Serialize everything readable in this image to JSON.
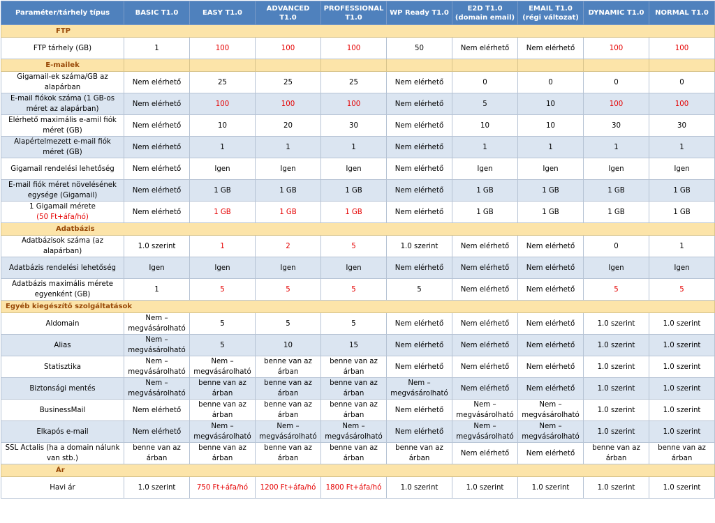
{
  "columns": [
    "Paraméter/tárhely típus",
    "BASIC T1.0",
    "EASY T1.0",
    "ADVANCED T1.0",
    "PROFESSIONAL T1.0",
    "WP Ready T1.0",
    "E2D T1.0 (domain email)",
    "EMAIL T1.0 (régi változat)",
    "DYNAMIC T1.0",
    "NORMAL T1.0"
  ],
  "sections": [
    {
      "title": "FTP",
      "rows": [
        {
          "label": "FTP tárhely (GB)",
          "cells": [
            "1",
            "100",
            "100",
            "100",
            "50",
            "Nem elérhető",
            "Nem elérhető",
            "100",
            "100"
          ],
          "red": [
            1,
            2,
            3,
            7,
            8
          ]
        }
      ]
    },
    {
      "title": "E-mailek",
      "rows": [
        {
          "label": "Gigamail-ek száma/GB az alapárban",
          "cells": [
            "Nem elérhető",
            "25",
            "25",
            "25",
            "Nem elérhető",
            "0",
            "0",
            "0",
            "0"
          ],
          "red": []
        },
        {
          "label": "E-mail fiókok száma (1 GB-os méret az alapárban)",
          "cells": [
            "Nem elérhető",
            "100",
            "100",
            "100",
            "Nem elérhető",
            "5",
            "10",
            "100",
            "100"
          ],
          "red": [
            1,
            2,
            3,
            7,
            8
          ]
        },
        {
          "label": "Elérhető maximális e-amil fiók méret (GB)",
          "cells": [
            "Nem elérhető",
            "10",
            "20",
            "30",
            "Nem elérhető",
            "10",
            "10",
            "30",
            "30"
          ],
          "red": []
        },
        {
          "label": "Alapértelmezett e-mail fiók méret (GB)",
          "cells": [
            "Nem elérhető",
            "1",
            "1",
            "1",
            "Nem elérhető",
            "1",
            "1",
            "1",
            "1"
          ],
          "red": []
        },
        {
          "label": "Gigamail rendelési lehetőség",
          "cells": [
            "Nem elérhető",
            "Igen",
            "Igen",
            "Igen",
            "Nem elérhető",
            "Igen",
            "Igen",
            "Igen",
            "Igen"
          ],
          "red": []
        },
        {
          "label": "E-mail fiók méret növelésének egysége (Gigamail)",
          "cells": [
            "Nem elérhető",
            "1 GB",
            "1 GB",
            "1 GB",
            "Nem elérhető",
            "1 GB",
            "1 GB",
            "1 GB",
            "1 GB"
          ],
          "red": []
        },
        {
          "label": "1 Gigamail mérete",
          "label_note": "(50 Ft+áfa/hó)",
          "cells": [
            "Nem elérhető",
            "1 GB",
            "1 GB",
            "1 GB",
            "Nem elérhető",
            "1 GB",
            "1 GB",
            "1 GB",
            "1 GB"
          ],
          "red": [
            1,
            2,
            3
          ]
        }
      ]
    },
    {
      "title": "Adatbázis",
      "rows": [
        {
          "label": "Adatbázisok száma (az alapárban)",
          "cells": [
            "1.0 szerint",
            "1",
            "2",
            "5",
            "1.0 szerint",
            "Nem elérhető",
            "Nem elérhető",
            "0",
            "1"
          ],
          "red": [
            1,
            2,
            3
          ]
        },
        {
          "label": "Adatbázis rendelési lehetőség",
          "cells": [
            "Igen",
            "Igen",
            "Igen",
            "Igen",
            "Nem elérhető",
            "Nem elérhető",
            "Nem elérhető",
            "Igen",
            "Igen"
          ],
          "red": []
        },
        {
          "label": "Adatbázis maximális mérete egyenként (GB)",
          "cells": [
            "1",
            "5",
            "5",
            "5",
            "5",
            "Nem elérhető",
            "Nem elérhető",
            "5",
            "5"
          ],
          "red": [
            1,
            2,
            3,
            7,
            8
          ]
        }
      ]
    },
    {
      "title": "Egyéb kiegészítő szolgáltatások",
      "rows": [
        {
          "label": "Aldomain",
          "cells": [
            "Nem – megvásárolható",
            "5",
            "5",
            "5",
            "Nem elérhető",
            "Nem elérhető",
            "Nem elérhető",
            "1.0 szerint",
            "1.0 szerint"
          ],
          "red": []
        },
        {
          "label": "Alias",
          "cells": [
            "Nem – megvásárolható",
            "5",
            "10",
            "15",
            "Nem elérhető",
            "Nem elérhető",
            "Nem elérhető",
            "1.0 szerint",
            "1.0 szerint"
          ],
          "red": []
        },
        {
          "label": "Statisztika",
          "cells": [
            "Nem – megvásárolható",
            "Nem – megvásárolható",
            "benne van az árban",
            "benne van az árban",
            "Nem elérhető",
            "Nem elérhető",
            "Nem elérhető",
            "1.0 szerint",
            "1.0 szerint"
          ],
          "red": []
        },
        {
          "label": "Biztonsági mentés",
          "cells": [
            "Nem – megvásárolható",
            "benne van az árban",
            "benne van az árban",
            "benne van az árban",
            "Nem – megvásárolható",
            "Nem elérhető",
            "Nem elérhető",
            "1.0 szerint",
            "1.0 szerint"
          ],
          "red": []
        },
        {
          "label": "BusinessMail",
          "cells": [
            "Nem elérhető",
            "benne van az árban",
            "benne van az árban",
            "benne van az árban",
            "Nem elérhető",
            "Nem – megvásárolható",
            "Nem – megvásárolható",
            "1.0 szerint",
            "1.0 szerint"
          ],
          "red": []
        },
        {
          "label": "Elkapós e-mail",
          "cells": [
            "Nem elérhető",
            "Nem – megvásárolható",
            "Nem – megvásárolható",
            "Nem – megvásárolható",
            "Nem elérhető",
            "Nem – megvásárolható",
            "Nem – megvásárolható",
            "1.0 szerint",
            "1.0 szerint"
          ],
          "red": []
        },
        {
          "label": "SSL Actalis (ha a domain nálunk van stb.)",
          "cells": [
            "benne van az árban",
            "benne van az árban",
            "benne van az árban",
            "benne van az árban",
            "benne van az árban",
            "Nem elérhető",
            "Nem elérhető",
            "benne van az árban",
            "benne van az árban"
          ],
          "red": []
        }
      ]
    },
    {
      "title": "Ár",
      "rows": [
        {
          "label": "Havi ár",
          "cells": [
            "1.0 szerint",
            "750 Ft+áfa/hó",
            "1200 Ft+áfa/hó",
            "1800 Ft+áfa/hó",
            "1.0 szerint",
            "1.0 szerint",
            "1.0 szerint",
            "1.0 szerint",
            "1.0 szerint"
          ],
          "red": [
            1,
            2,
            3
          ]
        }
      ]
    }
  ]
}
